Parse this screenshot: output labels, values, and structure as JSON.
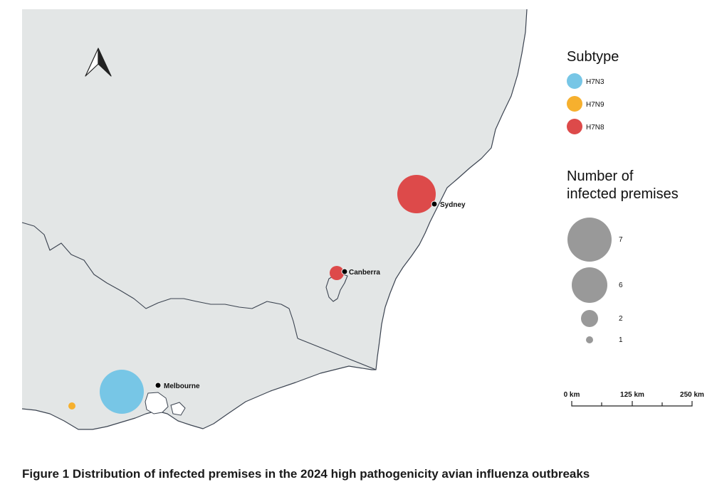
{
  "caption": "Figure 1 Distribution of infected premises in the 2024 high pathogenicity avian influenza outbreaks",
  "colors": {
    "land": "#e3e6e6",
    "sea": "#ffffff",
    "border": "#3b4350",
    "H7N3": "#77c6e6",
    "H7N9": "#f6b02e",
    "H7N8": "#dd4a4a",
    "size_legend": "#999999",
    "city_dot": "#000000"
  },
  "cities": [
    {
      "id": "sydney",
      "name": "Sydney"
    },
    {
      "id": "canberra",
      "name": "Canberra"
    },
    {
      "id": "melbourne",
      "name": "Melbourne"
    }
  ],
  "outbreaks": [
    {
      "id": "sydney-cluster",
      "subtype": "H7N8",
      "premises": 7
    },
    {
      "id": "canberra-cluster",
      "subtype": "H7N8",
      "premises": 1
    },
    {
      "id": "melbourne-cluster",
      "subtype": "H7N3",
      "premises": 7
    },
    {
      "id": "western-victoria",
      "subtype": "H7N9",
      "premises": 1
    }
  ],
  "legend": {
    "subtype_title": "Subtype",
    "subtypes": [
      {
        "name": "H7N3",
        "color": "#77c6e6"
      },
      {
        "name": "H7N9",
        "color": "#f6b02e"
      },
      {
        "name": "H7N8",
        "color": "#dd4a4a"
      }
    ],
    "size_title_line1": "Number of",
    "size_title_line2": "infected premises",
    "sizes": [
      {
        "value": 7,
        "label": "7"
      },
      {
        "value": 6,
        "label": "6"
      },
      {
        "value": 2,
        "label": "2"
      },
      {
        "value": 1,
        "label": "1"
      }
    ]
  },
  "scale_bar": {
    "labels": [
      "0 km",
      "125 km",
      "250 km"
    ]
  },
  "north_arrow": "north-arrow-icon"
}
